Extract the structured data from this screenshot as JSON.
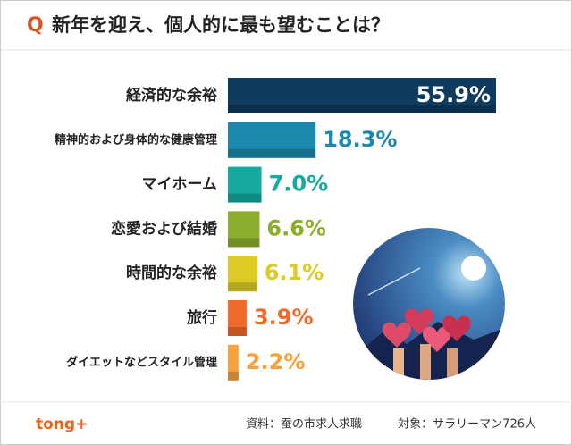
{
  "chart_data": {
    "type": "bar",
    "orientation": "horizontal",
    "q_label": "Q",
    "title": "新年を迎え、個人的に最も望むことは？",
    "categories": [
      "経済的な余裕",
      "精神的および身体的な健康管理",
      "マイホーム",
      "恋愛および結婚",
      "時間的な余裕",
      "旅行",
      "ダイエットなどスタイル管理"
    ],
    "values": [
      55.9,
      18.3,
      7.0,
      6.6,
      6.1,
      3.9,
      2.2
    ],
    "value_labels": [
      "55.9%",
      "18.3%",
      "7.0%",
      "6.6%",
      "6.1%",
      "3.9%",
      "2.2%"
    ],
    "colors": [
      "#0e3b5e",
      "#1b88ad",
      "#17a99f",
      "#8bae2d",
      "#dccb25",
      "#f06a2a",
      "#f5a23c"
    ],
    "logo": "tong+",
    "source": "資料：蚕の市求人求職",
    "target": "対象：サラリーマン726人"
  }
}
